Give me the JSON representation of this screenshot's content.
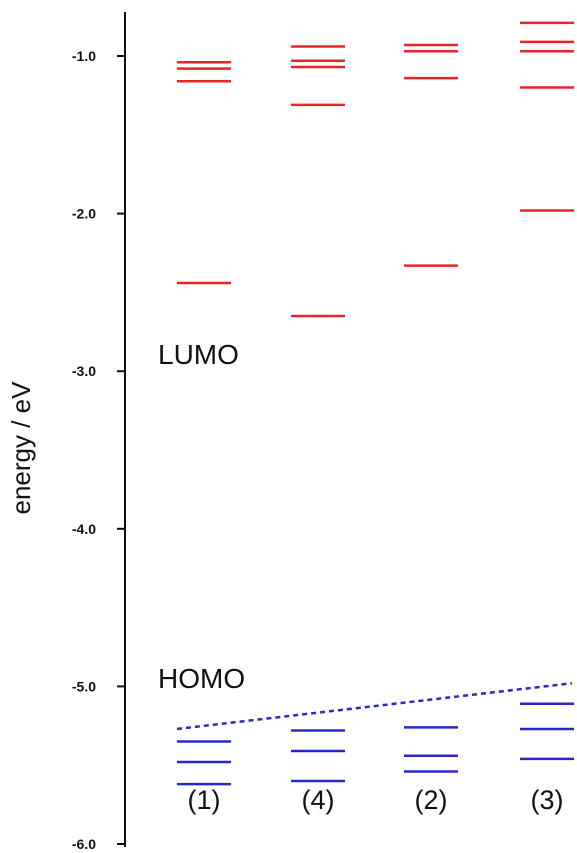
{
  "chart_data": {
    "type": "energy-level diagram",
    "ylabel": "energy / eV",
    "ylim": [
      -6.0,
      -0.7
    ],
    "y_ticks": [
      "-1.0",
      "-2.0",
      "-3.0",
      "-4.0",
      "-5.0",
      "-6.0"
    ],
    "y_tick_values": [
      -1.0,
      -2.0,
      -3.0,
      -4.0,
      -5.0,
      -6.0
    ],
    "categories": [
      "(1)",
      "(4)",
      "(2)",
      "(3)"
    ],
    "annotations": [
      "LUMO",
      "HOMO"
    ],
    "colors": {
      "unoccupied": "#e8262a",
      "occupied": "#2828c8",
      "axis": "#111111"
    },
    "series": [
      {
        "category": "(1)",
        "unoccupied": [
          -1.04,
          -1.08,
          -1.16,
          -2.44
        ],
        "occupied": [
          -5.35,
          -5.48,
          -5.62
        ]
      },
      {
        "category": "(4)",
        "unoccupied": [
          -0.94,
          -1.03,
          -1.07,
          -1.31,
          -2.65
        ],
        "occupied": [
          -5.28,
          -5.41,
          -5.6
        ]
      },
      {
        "category": "(2)",
        "unoccupied": [
          -0.93,
          -0.97,
          -1.14,
          -2.33
        ],
        "occupied": [
          -5.26,
          -5.44,
          -5.54
        ]
      },
      {
        "category": "(3)",
        "unoccupied": [
          -0.79,
          -0.91,
          -0.97,
          -1.2,
          -1.98
        ],
        "occupied": [
          -5.11,
          -5.27,
          -5.46
        ]
      }
    ],
    "homo_trend": [
      -5.27,
      -4.98
    ]
  }
}
